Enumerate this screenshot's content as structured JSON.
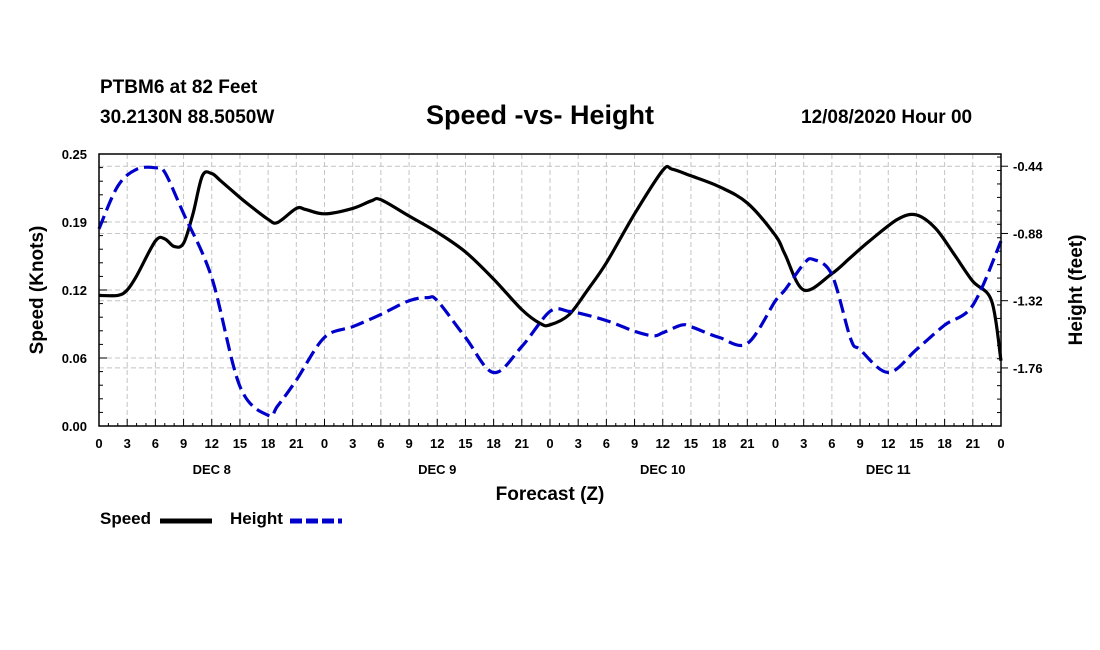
{
  "header": {
    "station": "PTBM6 at 82 Feet",
    "coords": "30.2130N 88.5050W",
    "title": "Speed -vs- Height",
    "timestamp": "12/08/2020 Hour 00"
  },
  "chart_data": {
    "type": "line",
    "title": "Speed -vs- Height",
    "xlabel": "Forecast (Z)",
    "ylabel_left": "Speed (Knots)",
    "ylabel_right": "Height (feet)",
    "xlim": [
      0,
      96
    ],
    "ylim_left": [
      0.0,
      0.25
    ],
    "ylim_right": [
      -2.14,
      -0.36
    ],
    "grid": true,
    "x_tick_labels": [
      "0",
      "3",
      "6",
      "9",
      "12",
      "15",
      "18",
      "21",
      "0",
      "3",
      "6",
      "9",
      "12",
      "15",
      "18",
      "21",
      "0",
      "3",
      "6",
      "9",
      "12",
      "15",
      "18",
      "21",
      "0",
      "3",
      "6",
      "9",
      "12",
      "15",
      "18",
      "21",
      "0"
    ],
    "left_ticks": [
      "0.00",
      "0.06",
      "0.12",
      "0.19",
      "0.25"
    ],
    "left_tick_values": [
      0.0,
      0.0625,
      0.125,
      0.1875,
      0.25
    ],
    "right_ticks": [
      "-0.44",
      "-0.88",
      "-1.32",
      "-1.76"
    ],
    "right_tick_values": [
      -0.44,
      -0.88,
      -1.32,
      -1.76
    ],
    "day_labels": [
      "DEC 8",
      "DEC 9",
      "DEC 10",
      "DEC 11"
    ],
    "legend_position": "bottom-left",
    "series": [
      {
        "name": "Speed",
        "axis": "left",
        "color": "#000000",
        "style": "solid",
        "x": [
          0,
          2,
          3,
          4,
          6,
          7,
          8,
          9,
          10,
          11,
          12,
          13,
          15,
          16,
          18,
          19,
          21,
          22,
          24,
          27,
          29,
          30,
          33,
          36,
          39,
          42,
          45,
          47,
          48,
          50,
          52,
          54,
          57,
          60,
          61,
          63,
          66,
          69,
          72,
          73,
          75,
          78,
          80,
          82,
          85,
          87,
          89,
          91,
          93,
          95,
          96
        ],
        "values": [
          0.12,
          0.12,
          0.125,
          0.138,
          0.17,
          0.172,
          0.165,
          0.168,
          0.195,
          0.23,
          0.232,
          0.225,
          0.21,
          0.203,
          0.19,
          0.187,
          0.2,
          0.199,
          0.195,
          0.2,
          0.207,
          0.208,
          0.193,
          0.178,
          0.16,
          0.135,
          0.107,
          0.094,
          0.093,
          0.102,
          0.125,
          0.15,
          0.195,
          0.235,
          0.236,
          0.23,
          0.22,
          0.205,
          0.175,
          0.158,
          0.125,
          0.14,
          0.155,
          0.17,
          0.19,
          0.194,
          0.182,
          0.158,
          0.133,
          0.115,
          0.06
        ]
      },
      {
        "name": "Height",
        "axis": "right",
        "color": "#0000cc",
        "style": "dashed",
        "x": [
          0,
          2,
          4,
          6,
          7,
          9,
          12,
          15,
          18,
          19,
          21,
          24,
          27,
          30,
          33,
          35,
          36,
          39,
          42,
          45,
          48,
          50,
          51,
          54,
          57,
          59,
          60,
          62,
          63,
          66,
          69,
          72,
          73,
          75,
          76,
          78,
          80,
          81,
          84,
          87,
          90,
          93,
          96
        ],
        "values": [
          -0.85,
          -0.57,
          -0.46,
          -0.45,
          -0.48,
          -0.75,
          -1.17,
          -1.88,
          -2.07,
          -2.01,
          -1.84,
          -1.56,
          -1.49,
          -1.41,
          -1.32,
          -1.3,
          -1.32,
          -1.56,
          -1.79,
          -1.62,
          -1.39,
          -1.39,
          -1.4,
          -1.45,
          -1.52,
          -1.55,
          -1.53,
          -1.48,
          -1.49,
          -1.56,
          -1.6,
          -1.32,
          -1.25,
          -1.08,
          -1.05,
          -1.15,
          -1.57,
          -1.64,
          -1.79,
          -1.64,
          -1.48,
          -1.35,
          -0.93
        ]
      }
    ]
  },
  "legend": {
    "speed_label": "Speed",
    "height_label": "Height"
  }
}
